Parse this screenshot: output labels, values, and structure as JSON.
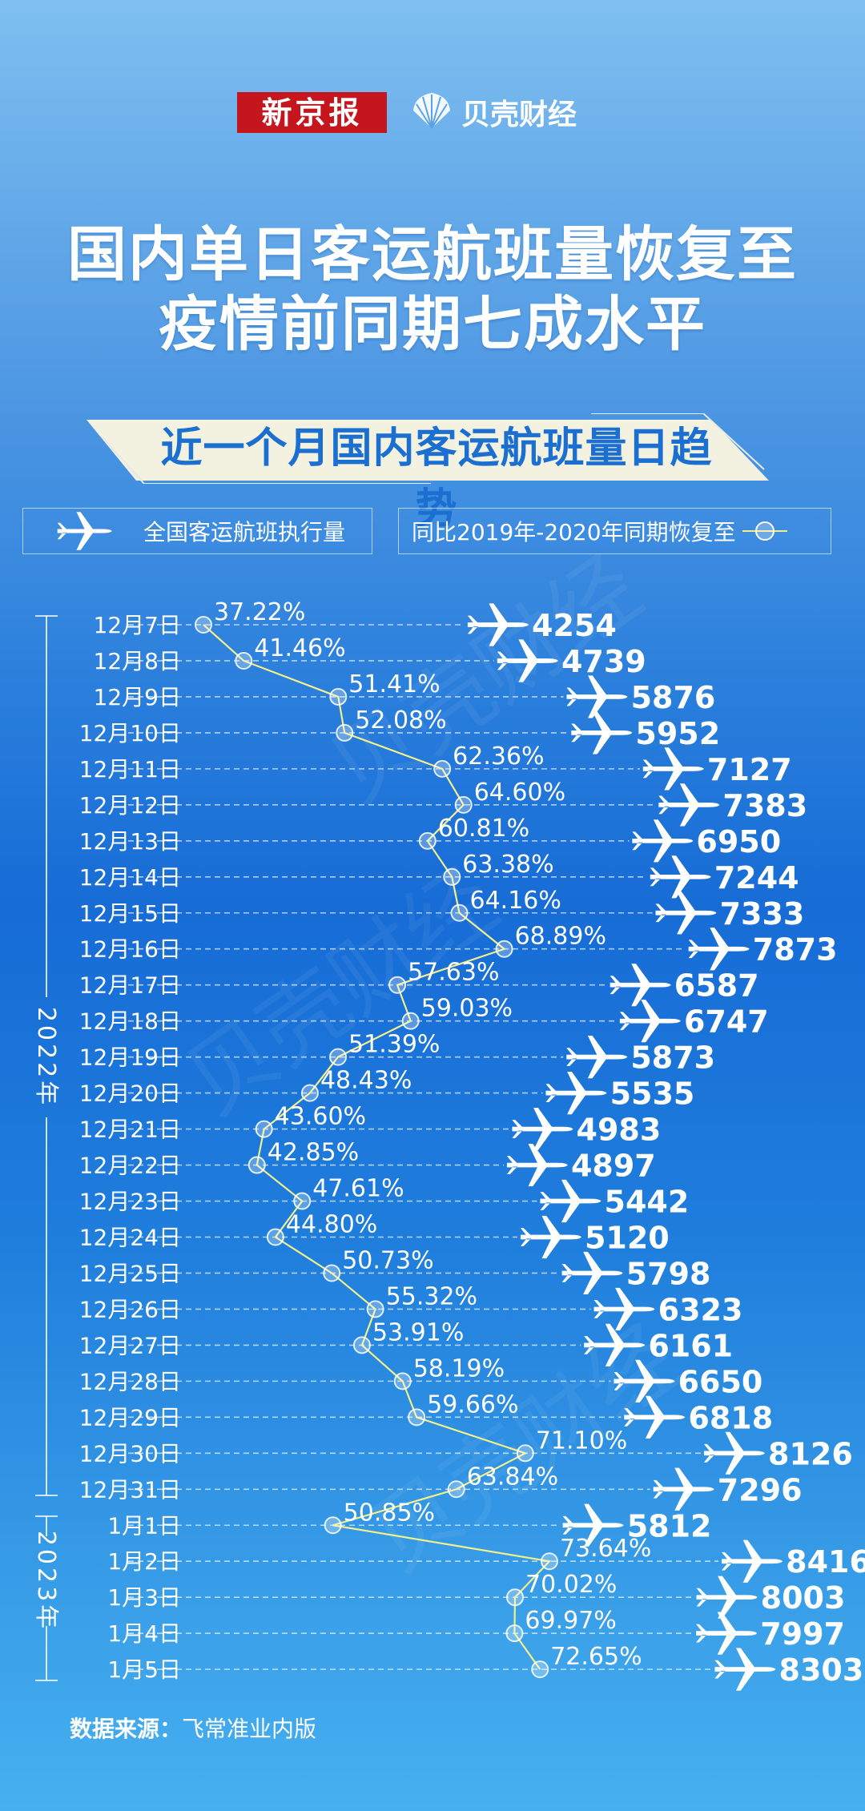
{
  "header": {
    "logo_xjb": "新京报",
    "logo_bk": "贝壳财经",
    "title_line1": "国内单日客运航班量恢复至",
    "title_line2": "疫情前同期七成水平",
    "subtitle": "近一个月国内客运航班量日趋势"
  },
  "legend": {
    "flights_label": "全国客运航班执行量",
    "flights_icon": "airplane-icon",
    "recovery_label": "同比2019年-2020年同期恢复至",
    "recovery_icon": "line-dot-marker-icon"
  },
  "colors": {
    "line": "#f2f08a",
    "banner": "#f3f1e0",
    "banner_text": "#1a6fd0",
    "logo_red": "#c4161c"
  },
  "source": {
    "label": "数据来源：",
    "value": "飞常准业内版"
  },
  "chart_data": {
    "type": "line",
    "year_groups": [
      {
        "label": "2022年",
        "from": "12月7日",
        "to": "12月31日"
      },
      {
        "label": "2023年",
        "from": "1月1日",
        "to": "1月5日"
      }
    ],
    "categories": [
      "12月7日",
      "12月8日",
      "12月9日",
      "12月10日",
      "12月11日",
      "12月12日",
      "12月13日",
      "12月14日",
      "12月15日",
      "12月16日",
      "12月17日",
      "12月18日",
      "12月19日",
      "12月20日",
      "12月21日",
      "12月22日",
      "12月23日",
      "12月24日",
      "12月25日",
      "12月26日",
      "12月27日",
      "12月28日",
      "12月29日",
      "12月30日",
      "12月31日",
      "1月1日",
      "1月2日",
      "1月3日",
      "1月4日",
      "1月5日"
    ],
    "series": [
      {
        "name": "同比2019年-2020年同期恢复至",
        "unit": "%",
        "values": [
          37.22,
          41.46,
          51.41,
          52.08,
          62.36,
          64.6,
          60.81,
          63.38,
          64.16,
          68.89,
          57.63,
          59.03,
          51.39,
          48.43,
          43.6,
          42.85,
          47.61,
          44.8,
          50.73,
          55.32,
          53.91,
          58.19,
          59.66,
          71.1,
          63.84,
          50.85,
          73.64,
          70.02,
          69.97,
          72.65
        ],
        "labels": [
          "37.22%",
          "41.46%",
          "51.41%",
          "52.08%",
          "62.36%",
          "64.60%",
          "60.81%",
          "63.38%",
          "64.16%",
          "68.89%",
          "57.63%",
          "59.03%",
          "51.39%",
          "48.43%",
          "43.60%",
          "42.85%",
          "47.61%",
          "44.80%",
          "50.73%",
          "55.32%",
          "53.91%",
          "58.19%",
          "59.66%",
          "71.10%",
          "63.84%",
          "50.85%",
          "73.64%",
          "70.02%",
          "69.97%",
          "72.65%"
        ]
      },
      {
        "name": "全国客运航班执行量",
        "values": [
          4254,
          4739,
          5876,
          5952,
          7127,
          7383,
          6950,
          7244,
          7333,
          7873,
          6587,
          6747,
          5873,
          5535,
          4983,
          4897,
          5442,
          5120,
          5798,
          6323,
          6161,
          6650,
          6818,
          8126,
          7296,
          5812,
          8416,
          8003,
          7997,
          8303
        ]
      }
    ]
  }
}
